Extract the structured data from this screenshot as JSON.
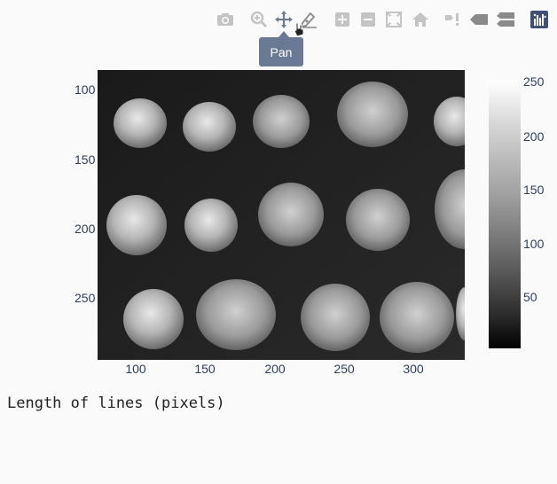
{
  "modebar": {
    "icons": [
      "camera-icon",
      "zoom-icon",
      "pan-icon",
      "draw-icon",
      "zoom-in-icon",
      "zoom-out-icon",
      "autoscale-icon",
      "home-icon",
      "hover-closest-icon",
      "hover-compare-icon",
      "toggle-spike-icon",
      "plotly-logo-icon"
    ],
    "icon_color": "#c4c4c4",
    "active_color": "#6b7a94"
  },
  "tooltip": {
    "label": "Pan"
  },
  "axes": {
    "x_ticks": [
      "100",
      "150",
      "200",
      "250",
      "300"
    ],
    "y_ticks": [
      "100",
      "150",
      "200",
      "250"
    ]
  },
  "colorbar": {
    "ticks": [
      "250",
      "200",
      "150",
      "100",
      "50"
    ],
    "range": [
      0,
      255
    ]
  },
  "caption": "Length of lines (pixels)"
}
